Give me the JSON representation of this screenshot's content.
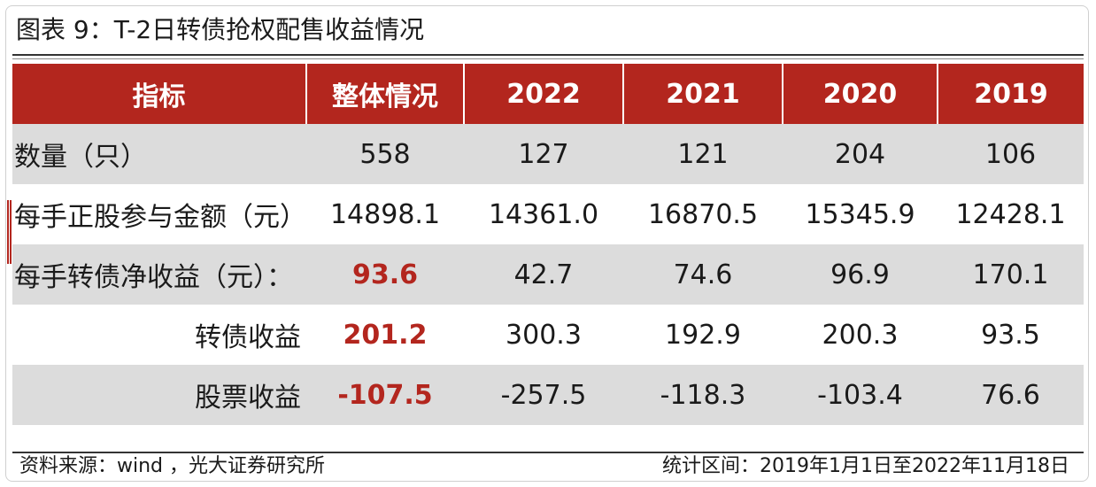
{
  "title": "图表 9：T-2日转债抢权配售收益情况",
  "colors": {
    "header_bg": "#b3261e",
    "highlight_text": "#b3261e",
    "row_gray": "#dcdcdc"
  },
  "table": {
    "headers": [
      "指标",
      "整体情况",
      "2022",
      "2021",
      "2020",
      "2019"
    ],
    "rows": [
      {
        "label": "数量（只）",
        "values": [
          "558",
          "127",
          "121",
          "204",
          "106"
        ]
      },
      {
        "label": "每手正股参与金额（元）",
        "values": [
          "14898.1",
          "14361.0",
          "16870.5",
          "15345.9",
          "12428.1"
        ]
      },
      {
        "label": "每手转债净收益（元）：",
        "values": [
          "93.6",
          "42.7",
          "74.6",
          "96.9",
          "170.1"
        ]
      },
      {
        "label": "转债收益",
        "values": [
          "201.2",
          "300.3",
          "192.9",
          "200.3",
          "93.5"
        ]
      },
      {
        "label": "股票收益",
        "values": [
          "-107.5",
          "-257.5",
          "-118.3",
          "-103.4",
          "76.6"
        ]
      }
    ]
  },
  "footer": {
    "source": "资料来源：wind ，光大证券研究所",
    "period": "统计区间：2019年1月1日至2022年11月18日"
  }
}
